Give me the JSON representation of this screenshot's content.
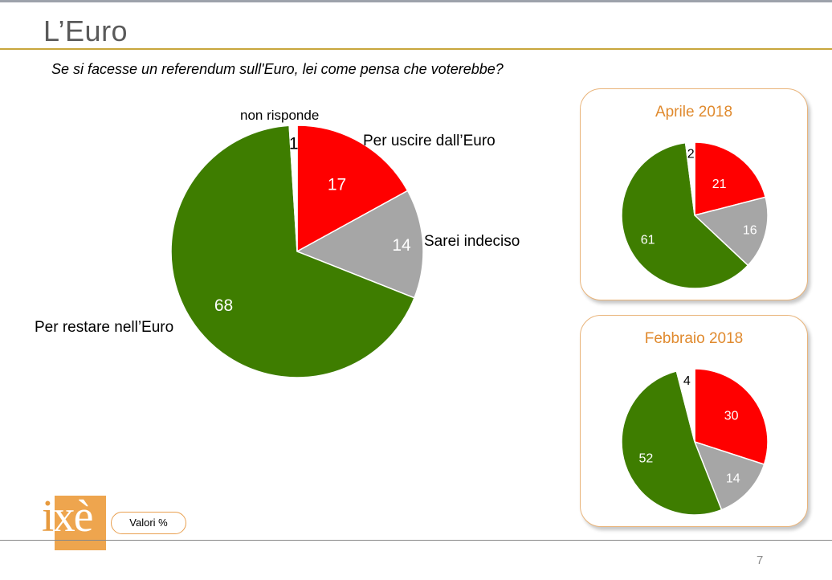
{
  "title": "L’Euro",
  "subtitle": "Se si facesse un referendum sull'Euro, lei come pensa che voterebbe?",
  "colors": {
    "per_uscire": "#ff0000",
    "sarei_indeciso": "#a6a6a6",
    "per_restare": "#3e7d00",
    "non_risponde": "#ffffff",
    "accent": "#e08a2e",
    "title_rule": "#c8a63c"
  },
  "chart_data": [
    {
      "type": "pie",
      "categories": [
        "Per uscire dall’Euro",
        "Sarei indeciso",
        "Per restare nell’Euro",
        "non risponde"
      ],
      "values": [
        17,
        14,
        68,
        1
      ]
    },
    {
      "type": "pie",
      "title": "Aprile 2018",
      "categories": [
        "Per uscire dall’Euro",
        "Sarei indeciso",
        "Per restare nell’Euro",
        "non risponde"
      ],
      "values": [
        21,
        16,
        61,
        2
      ]
    },
    {
      "type": "pie",
      "title": "Febbraio 2018",
      "categories": [
        "Per uscire dall’Euro",
        "Sarei indeciso",
        "Per restare nell’Euro",
        "non risponde"
      ],
      "values": [
        30,
        14,
        52,
        4
      ]
    }
  ],
  "logo_text": "ixè",
  "valori_label": "Valori %",
  "page_number": "7"
}
